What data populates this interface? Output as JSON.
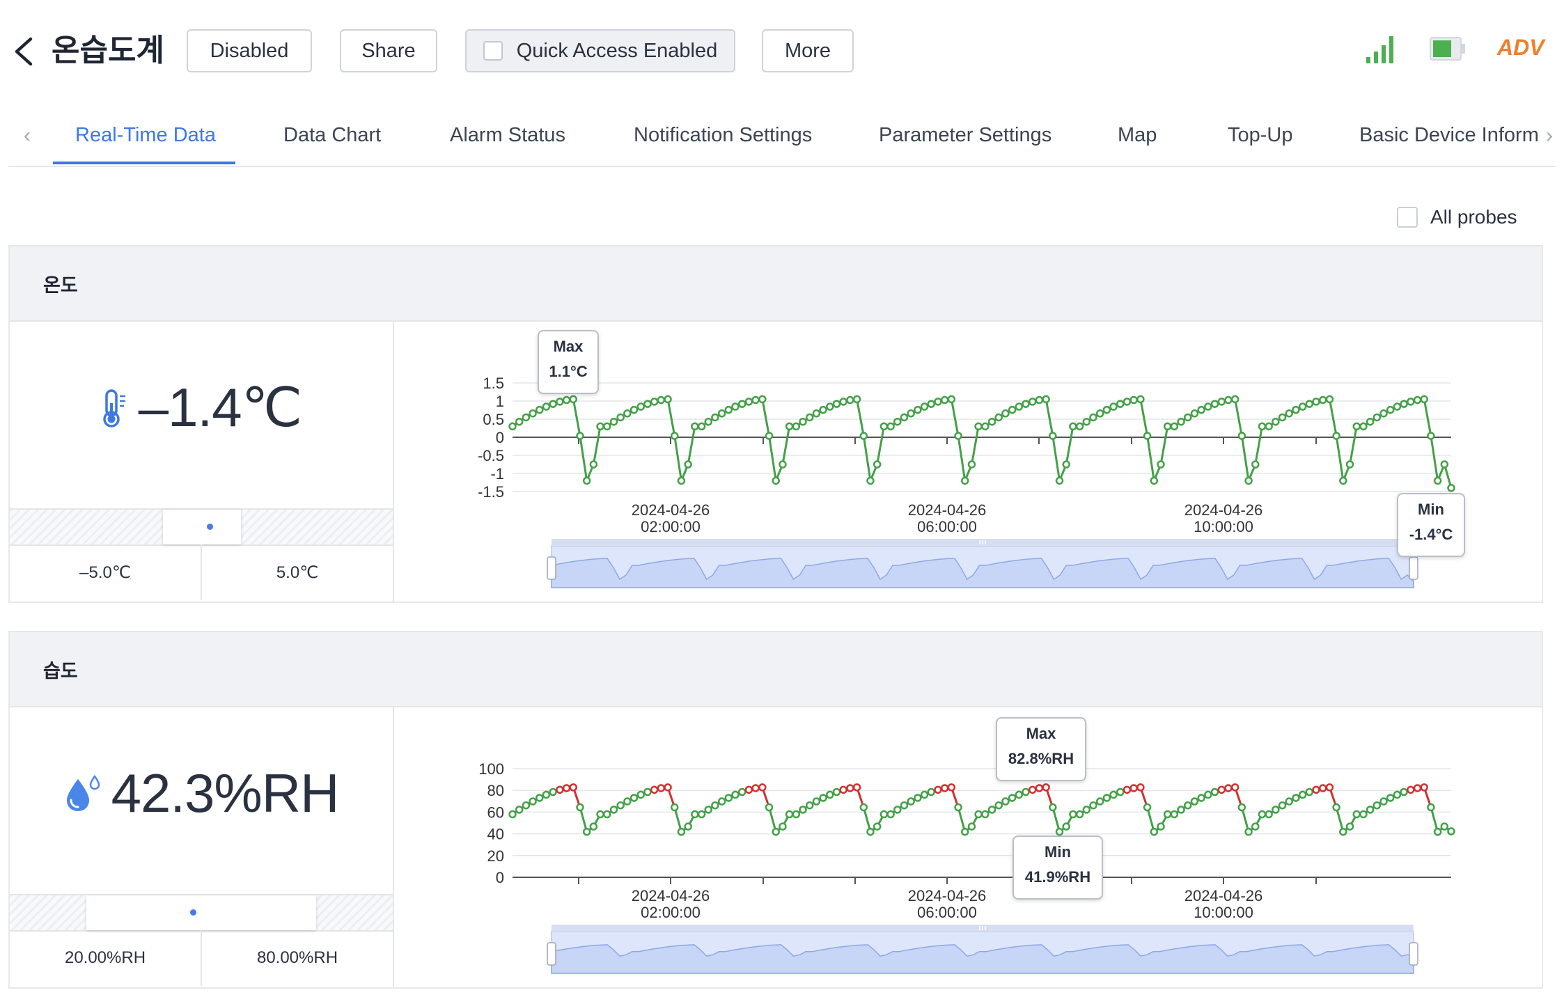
{
  "header": {
    "title": "온습도계",
    "buttons": {
      "disabled": "Disabled",
      "share": "Share",
      "quick_access": "Quick Access Enabled",
      "more": "More"
    },
    "quick_access_checked": false,
    "status": {
      "signal_icon": "signal-bars-icon",
      "battery_icon": "battery-icon",
      "signal_color": "#4caf50",
      "battery_color": "#4caf50",
      "mode": "ADV",
      "mode_color": "#f07f2e"
    }
  },
  "tabs": {
    "items": [
      "Real-Time Data",
      "Data Chart",
      "Alarm Status",
      "Notification Settings",
      "Parameter Settings",
      "Map",
      "Top-Up",
      "Basic Device Inform"
    ],
    "active_index": 0,
    "accent_color": "#3d77e6"
  },
  "all_probes": {
    "label": "All probes",
    "checked": false
  },
  "panels": {
    "temperature": {
      "title": "온도",
      "icon": "thermometer-icon",
      "value": "–1.4℃",
      "low_limit": "–5.0℃",
      "high_limit": "5.0℃",
      "range_position": 0.47,
      "max_callout": {
        "label": "Max",
        "value": "1.1°C"
      },
      "min_callout": {
        "label": "Min",
        "value": "-1.4°C"
      }
    },
    "humidity": {
      "title": "습도",
      "icon": "water-drop-icon",
      "value": "42.3%RH",
      "low_limit": "20.00%RH",
      "high_limit": "80.00%RH",
      "range_position": 0.42,
      "max_callout": {
        "label": "Max",
        "value": "82.8%RH"
      },
      "min_callout": {
        "label": "Min",
        "value": "41.9%RH"
      }
    }
  },
  "chart_data": [
    {
      "type": "line",
      "ylim": [
        -1.5,
        1.5
      ],
      "y_ticks": [
        "1.5",
        "1",
        "0.5",
        "0",
        "-0.5",
        "-1",
        "-1.5"
      ],
      "x_tick_labels": [
        [
          "2024-04-26",
          "02:00:00"
        ],
        [
          "2024-04-26",
          "06:00:00"
        ],
        [
          "2024-04-26",
          "10:00:00"
        ]
      ],
      "grid": true,
      "cycles": 10,
      "cycle_shape": {
        "start": 0.3,
        "peak": 1.05,
        "trough": -1.2,
        "end": -1.4
      },
      "line_color": "#43a047",
      "alarm_color": "#d32f2f",
      "marker": "circle"
    },
    {
      "type": "line",
      "ylim": [
        0,
        100
      ],
      "y_ticks": [
        "100",
        "80",
        "60",
        "40",
        "20",
        "0"
      ],
      "x_tick_labels": [
        [
          "2024-04-26",
          "02:00:00"
        ],
        [
          "2024-04-26",
          "06:00:00"
        ],
        [
          "2024-04-26",
          "10:00:00"
        ]
      ],
      "grid": true,
      "cycles": 10,
      "cycle_shape": {
        "start": 58,
        "peak": 82.8,
        "trough": 41.9,
        "end": 42.3
      },
      "alarm_threshold": 80,
      "line_color": "#43a047",
      "alarm_color": "#d32f2f",
      "marker": "circle"
    }
  ]
}
